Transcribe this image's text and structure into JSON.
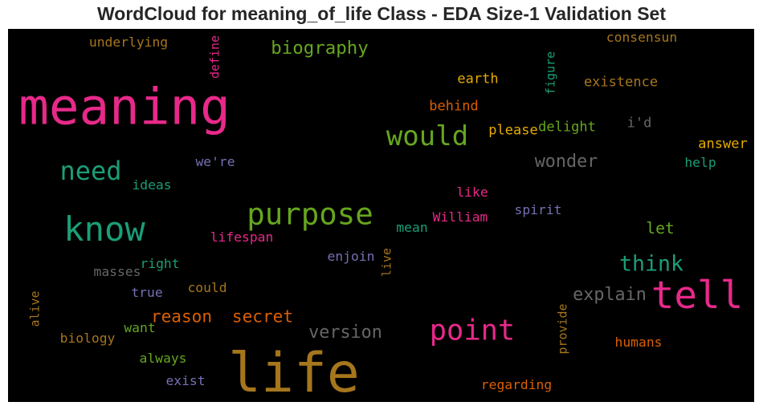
{
  "chart_data": {
    "type": "wordcloud",
    "title": "WordCloud for meaning_of_life Class - EDA Size-1 Validation Set",
    "palette": "Dark2",
    "words": [
      {
        "text": "life",
        "weight": 1.0,
        "color": "#a6761d"
      },
      {
        "text": "meaning",
        "weight": 0.92,
        "color": "#e7298a"
      },
      {
        "text": "tell",
        "weight": 0.7,
        "color": "#e7298a"
      },
      {
        "text": "know",
        "weight": 0.62,
        "color": "#1b9e77"
      },
      {
        "text": "purpose",
        "weight": 0.55,
        "color": "#66a61e"
      },
      {
        "text": "point",
        "weight": 0.52,
        "color": "#e7298a"
      },
      {
        "text": "would",
        "weight": 0.5,
        "color": "#66a61e"
      },
      {
        "text": "need",
        "weight": 0.47,
        "color": "#1b9e77"
      },
      {
        "text": "think",
        "weight": 0.39,
        "color": "#1b9e77"
      },
      {
        "text": "biography",
        "weight": 0.33,
        "color": "#66a61e"
      },
      {
        "text": "wonder",
        "weight": 0.32,
        "color": "#666666"
      },
      {
        "text": "explain",
        "weight": 0.32,
        "color": "#666666"
      },
      {
        "text": "version",
        "weight": 0.32,
        "color": "#666666"
      },
      {
        "text": "reason",
        "weight": 0.31,
        "color": "#d95f02"
      },
      {
        "text": "secret",
        "weight": 0.31,
        "color": "#d95f02"
      },
      {
        "text": "let",
        "weight": 0.29,
        "color": "#66a61e"
      },
      {
        "text": "earth",
        "weight": 0.25,
        "color": "#e6ab02"
      },
      {
        "text": "existence",
        "weight": 0.25,
        "color": "#a6761d"
      },
      {
        "text": "behind",
        "weight": 0.25,
        "color": "#d95f02"
      },
      {
        "text": "please",
        "weight": 0.25,
        "color": "#e6ab02"
      },
      {
        "text": "delight",
        "weight": 0.25,
        "color": "#66a61e"
      },
      {
        "text": "i'd",
        "weight": 0.25,
        "color": "#666666"
      },
      {
        "text": "answer",
        "weight": 0.25,
        "color": "#e6ab02"
      },
      {
        "text": "consensun",
        "weight": 0.24,
        "color": "#a6761d"
      },
      {
        "text": "underlying",
        "weight": 0.24,
        "color": "#a6761d"
      },
      {
        "text": "help",
        "weight": 0.24,
        "color": "#1b9e77"
      },
      {
        "text": "we're",
        "weight": 0.24,
        "color": "#7570b3"
      },
      {
        "text": "ideas",
        "weight": 0.24,
        "color": "#1b9e77"
      },
      {
        "text": "like",
        "weight": 0.24,
        "color": "#e7298a"
      },
      {
        "text": "spirit",
        "weight": 0.24,
        "color": "#7570b3"
      },
      {
        "text": "William",
        "weight": 0.24,
        "color": "#e7298a"
      },
      {
        "text": "mean",
        "weight": 0.24,
        "color": "#1b9e77"
      },
      {
        "text": "lifespan",
        "weight": 0.24,
        "color": "#e7298a"
      },
      {
        "text": "enjoin",
        "weight": 0.24,
        "color": "#7570b3"
      },
      {
        "text": "right",
        "weight": 0.24,
        "color": "#1b9e77"
      },
      {
        "text": "masses",
        "weight": 0.24,
        "color": "#666666"
      },
      {
        "text": "true",
        "weight": 0.24,
        "color": "#7570b3"
      },
      {
        "text": "could",
        "weight": 0.24,
        "color": "#a6761d"
      },
      {
        "text": "want",
        "weight": 0.24,
        "color": "#66a61e"
      },
      {
        "text": "biology",
        "weight": 0.24,
        "color": "#a6761d"
      },
      {
        "text": "always",
        "weight": 0.24,
        "color": "#66a61e"
      },
      {
        "text": "exist",
        "weight": 0.24,
        "color": "#7570b3"
      },
      {
        "text": "humans",
        "weight": 0.24,
        "color": "#d95f02"
      },
      {
        "text": "regarding",
        "weight": 0.24,
        "color": "#d95f02"
      },
      {
        "text": "define",
        "weight": 0.22,
        "color": "#e7298a",
        "orientation": "vertical"
      },
      {
        "text": "figure",
        "weight": 0.22,
        "color": "#1b9e77",
        "orientation": "vertical"
      },
      {
        "text": "alive",
        "weight": 0.22,
        "color": "#a6761d",
        "orientation": "vertical"
      },
      {
        "text": "live",
        "weight": 0.22,
        "color": "#a6761d",
        "orientation": "vertical"
      },
      {
        "text": "provide",
        "weight": 0.22,
        "color": "#a6761d",
        "orientation": "vertical"
      }
    ]
  }
}
